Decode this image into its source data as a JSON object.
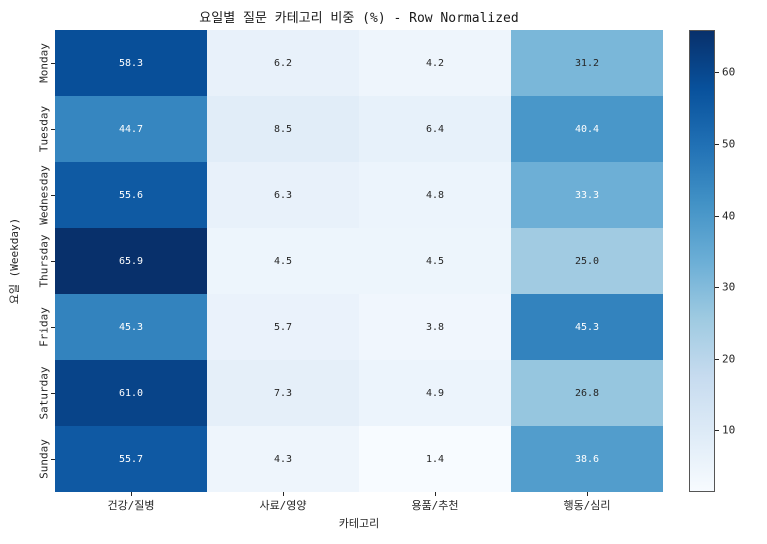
{
  "chart_data": {
    "type": "heatmap",
    "title": "요일별 질문 카테고리 비중 (%) - Row Normalized",
    "xlabel": "카테고리",
    "ylabel": "요일 (Weekday)",
    "columns": [
      "건강/질병",
      "사료/영양",
      "용품/추천",
      "행동/심리"
    ],
    "rows": [
      "Monday",
      "Tuesday",
      "Wednesday",
      "Thursday",
      "Friday",
      "Saturday",
      "Sunday"
    ],
    "values": [
      [
        58.3,
        6.2,
        4.2,
        31.2
      ],
      [
        44.7,
        8.5,
        6.4,
        40.4
      ],
      [
        55.6,
        6.3,
        4.8,
        33.3
      ],
      [
        65.9,
        4.5,
        4.5,
        25.0
      ],
      [
        45.3,
        5.7,
        3.8,
        45.3
      ],
      [
        61.0,
        7.3,
        4.9,
        26.8
      ],
      [
        55.7,
        4.3,
        1.4,
        38.6
      ]
    ],
    "value_format": "one_decimal",
    "vmin": 1.4,
    "vmax": 65.9,
    "colormap": "Blues",
    "colormap_anchors": [
      "#f7fbff",
      "#deebf7",
      "#c6dbef",
      "#9ecae1",
      "#6baed6",
      "#4292c6",
      "#2171b5",
      "#08519c",
      "#08306b"
    ],
    "annotation_text_light": "#ffffff",
    "annotation_text_dark": "#262626",
    "colorbar_ticks": [
      10,
      20,
      30,
      40,
      50,
      60
    ],
    "legend_position": "right colorbar",
    "grid": false
  }
}
